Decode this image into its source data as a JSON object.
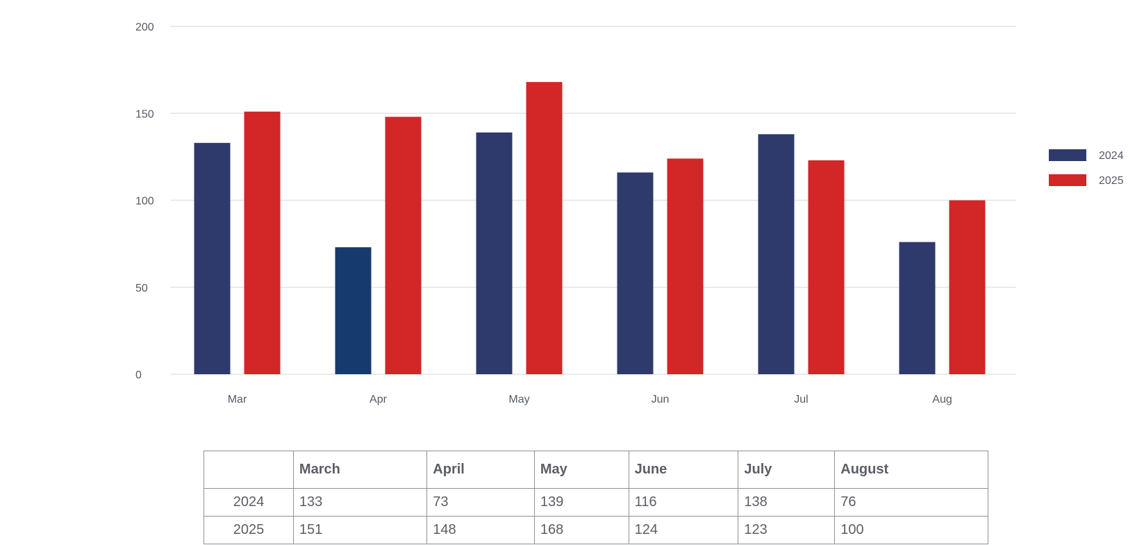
{
  "chart_data": {
    "type": "bar",
    "categories": [
      "Mar",
      "Apr",
      "May",
      "Jun",
      "Jul",
      "Aug"
    ],
    "series": [
      {
        "name": "2024",
        "values": [
          133,
          73,
          139,
          116,
          138,
          76
        ],
        "color": "#2e3a6b"
      },
      {
        "name": "2025",
        "values": [
          151,
          148,
          168,
          124,
          123,
          100
        ],
        "color": "#d22627"
      }
    ],
    "ylim": [
      0,
      200
    ],
    "yticks": [
      0,
      50,
      100,
      150,
      200
    ],
    "grid": true,
    "legend": "right",
    "highlight_color": "#173a6e"
  },
  "table": {
    "headers": [
      "",
      "March",
      "April",
      "May",
      "June",
      "July",
      "August"
    ],
    "rows": [
      {
        "label": "2024",
        "cells": [
          "133",
          "73",
          "139",
          "116",
          "138",
          "76"
        ]
      },
      {
        "label": "2025",
        "cells": [
          "151",
          "148",
          "168",
          "124",
          "123",
          "100"
        ]
      }
    ]
  }
}
